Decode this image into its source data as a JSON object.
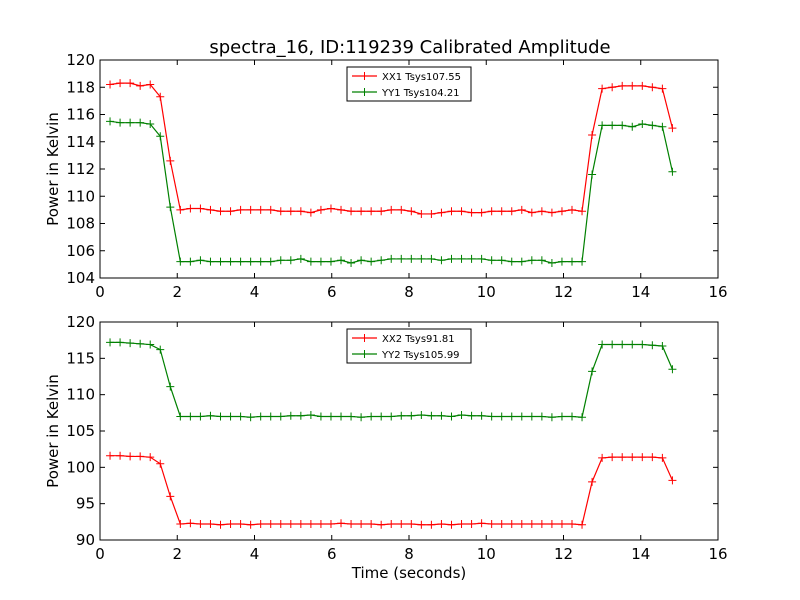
{
  "title": "spectra_16, ID:119239 Calibrated Amplitude",
  "chart_data": [
    {
      "type": "line",
      "ylabel": "Power in Kelvin",
      "xlabel": "",
      "xlim": [
        0,
        16
      ],
      "ylim": [
        104,
        120
      ],
      "xticks": [
        0,
        2,
        4,
        6,
        8,
        10,
        12,
        14,
        16
      ],
      "yticks": [
        104,
        106,
        108,
        110,
        112,
        114,
        116,
        118,
        120
      ],
      "legend_position": "top-center",
      "x": [
        0.26,
        0.52,
        0.78,
        1.04,
        1.3,
        1.56,
        1.82,
        2.08,
        2.34,
        2.6,
        2.86,
        3.12,
        3.38,
        3.64,
        3.9,
        4.16,
        4.42,
        4.68,
        4.94,
        5.2,
        5.46,
        5.72,
        5.98,
        6.24,
        6.5,
        6.76,
        7.02,
        7.28,
        7.54,
        7.8,
        8.06,
        8.32,
        8.58,
        8.84,
        9.1,
        9.36,
        9.62,
        9.88,
        10.14,
        10.4,
        10.66,
        10.92,
        11.18,
        11.44,
        11.7,
        11.96,
        12.22,
        12.48,
        12.74,
        13.0,
        13.26,
        13.52,
        13.78,
        14.04,
        14.3,
        14.56,
        14.82
      ],
      "series": [
        {
          "name": "XX1 Tsys107.55",
          "color": "#ff0000",
          "values": [
            118.2,
            118.3,
            118.3,
            118.1,
            118.2,
            117.3,
            112.6,
            109.0,
            109.1,
            109.1,
            109.0,
            108.9,
            108.9,
            109.0,
            109.0,
            109.0,
            109.0,
            108.9,
            108.9,
            108.9,
            108.8,
            109.0,
            109.1,
            109.0,
            108.9,
            108.9,
            108.9,
            108.9,
            109.0,
            109.0,
            108.9,
            108.7,
            108.7,
            108.8,
            108.9,
            108.9,
            108.8,
            108.8,
            108.9,
            108.9,
            108.9,
            109.0,
            108.8,
            108.9,
            108.8,
            108.9,
            109.0,
            108.9,
            114.5,
            117.9,
            118.0,
            118.1,
            118.1,
            118.1,
            118.0,
            117.9,
            115.0
          ]
        },
        {
          "name": "YY1 Tsys104.21",
          "color": "#008000",
          "values": [
            115.5,
            115.4,
            115.4,
            115.4,
            115.3,
            114.4,
            109.2,
            105.2,
            105.2,
            105.3,
            105.2,
            105.2,
            105.2,
            105.2,
            105.2,
            105.2,
            105.2,
            105.3,
            105.3,
            105.4,
            105.2,
            105.2,
            105.2,
            105.3,
            105.1,
            105.3,
            105.2,
            105.3,
            105.4,
            105.4,
            105.4,
            105.4,
            105.4,
            105.3,
            105.4,
            105.4,
            105.4,
            105.4,
            105.3,
            105.3,
            105.2,
            105.2,
            105.3,
            105.3,
            105.1,
            105.2,
            105.2,
            105.2,
            111.6,
            115.2,
            115.2,
            115.2,
            115.1,
            115.3,
            115.2,
            115.1,
            111.8
          ]
        }
      ]
    },
    {
      "type": "line",
      "ylabel": "Power in Kelvin",
      "xlabel": "Time (seconds)",
      "xlim": [
        0,
        16
      ],
      "ylim": [
        90,
        120
      ],
      "xticks": [
        0,
        2,
        4,
        6,
        8,
        10,
        12,
        14,
        16
      ],
      "yticks": [
        90,
        95,
        100,
        105,
        110,
        115,
        120
      ],
      "legend_position": "top-center",
      "x": [
        0.26,
        0.52,
        0.78,
        1.04,
        1.3,
        1.56,
        1.82,
        2.08,
        2.34,
        2.6,
        2.86,
        3.12,
        3.38,
        3.64,
        3.9,
        4.16,
        4.42,
        4.68,
        4.94,
        5.2,
        5.46,
        5.72,
        5.98,
        6.24,
        6.5,
        6.76,
        7.02,
        7.28,
        7.54,
        7.8,
        8.06,
        8.32,
        8.58,
        8.84,
        9.1,
        9.36,
        9.62,
        9.88,
        10.14,
        10.4,
        10.66,
        10.92,
        11.18,
        11.44,
        11.7,
        11.96,
        12.22,
        12.48,
        12.74,
        13.0,
        13.26,
        13.52,
        13.78,
        14.04,
        14.3,
        14.56,
        14.82
      ],
      "series": [
        {
          "name": "XX2 Tsys91.81",
          "color": "#ff0000",
          "values": [
            101.6,
            101.6,
            101.5,
            101.5,
            101.4,
            100.5,
            96.0,
            92.2,
            92.3,
            92.2,
            92.2,
            92.1,
            92.2,
            92.2,
            92.1,
            92.2,
            92.2,
            92.2,
            92.2,
            92.2,
            92.2,
            92.2,
            92.2,
            92.3,
            92.2,
            92.2,
            92.2,
            92.1,
            92.2,
            92.2,
            92.2,
            92.1,
            92.1,
            92.2,
            92.1,
            92.2,
            92.2,
            92.3,
            92.2,
            92.2,
            92.2,
            92.2,
            92.2,
            92.2,
            92.2,
            92.2,
            92.2,
            92.1,
            98.0,
            101.3,
            101.4,
            101.4,
            101.4,
            101.4,
            101.4,
            101.3,
            98.2
          ]
        },
        {
          "name": "YY2 Tsys105.99",
          "color": "#008000",
          "values": [
            117.2,
            117.2,
            117.1,
            117.0,
            116.9,
            116.2,
            111.1,
            107.0,
            107.0,
            107.0,
            107.1,
            107.0,
            107.0,
            107.0,
            106.9,
            107.0,
            107.0,
            107.0,
            107.1,
            107.1,
            107.2,
            107.0,
            107.0,
            107.0,
            107.0,
            106.9,
            107.0,
            107.0,
            107.0,
            107.1,
            107.1,
            107.2,
            107.1,
            107.1,
            107.0,
            107.2,
            107.1,
            107.1,
            107.0,
            107.0,
            107.0,
            107.0,
            107.0,
            107.0,
            106.9,
            107.0,
            107.0,
            106.9,
            113.2,
            116.9,
            116.9,
            116.9,
            116.9,
            116.9,
            116.8,
            116.7,
            113.5
          ]
        }
      ]
    }
  ]
}
